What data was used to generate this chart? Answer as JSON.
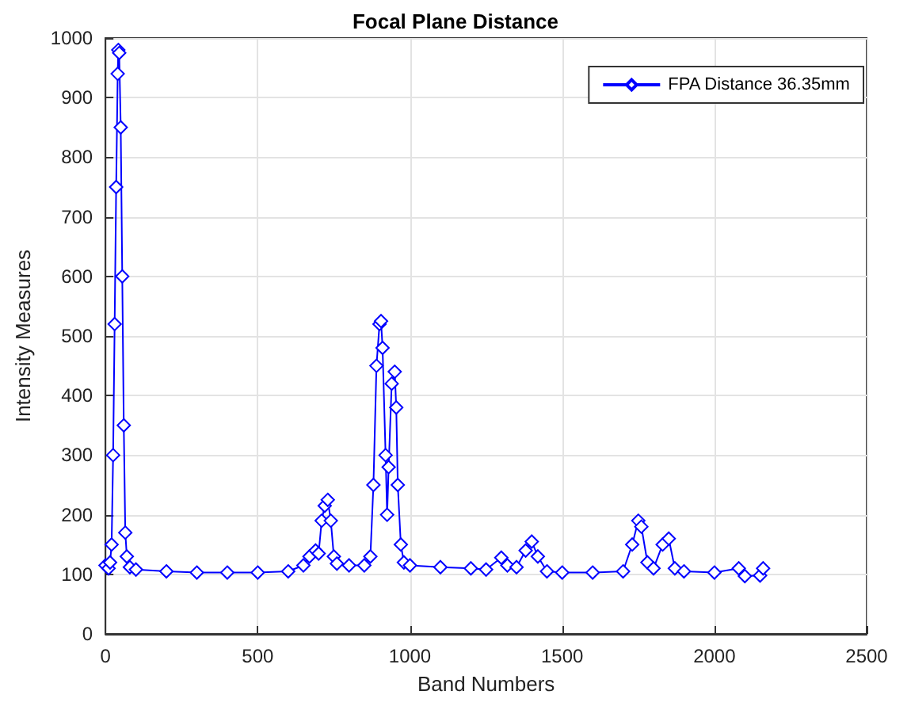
{
  "chart_data": {
    "type": "line",
    "title": "Focal Plane Distance",
    "xlabel": "Band Numbers",
    "ylabel": "Intensity Measures",
    "xlim": [
      0,
      2500
    ],
    "xticks": [
      0,
      500,
      1000,
      1500,
      2000,
      2500
    ],
    "ylim": [
      0,
      1000
    ],
    "yticks": [
      0,
      100,
      200,
      300,
      400,
      500,
      600,
      700,
      800,
      900,
      1000
    ],
    "grid": true,
    "legend": "top right",
    "marker": "diamond",
    "line_style": "solid",
    "series": [
      {
        "name": "FPA Distance 36.35mm",
        "color": "#0000ff",
        "x": [
          0,
          10,
          15,
          20,
          25,
          30,
          35,
          40,
          42,
          45,
          50,
          55,
          60,
          65,
          70,
          80,
          100,
          200,
          300,
          400,
          500,
          600,
          650,
          670,
          690,
          700,
          710,
          720,
          730,
          740,
          750,
          760,
          800,
          850,
          870,
          880,
          890,
          900,
          905,
          910,
          920,
          925,
          930,
          940,
          950,
          955,
          960,
          970,
          980,
          1000,
          1100,
          1200,
          1250,
          1300,
          1320,
          1350,
          1380,
          1400,
          1420,
          1450,
          1500,
          1600,
          1700,
          1730,
          1750,
          1760,
          1780,
          1800,
          1830,
          1850,
          1870,
          1900,
          2000,
          2080,
          2100,
          2150,
          2160
        ],
        "values": [
          115,
          110,
          120,
          150,
          300,
          520,
          750,
          940,
          980,
          975,
          850,
          600,
          350,
          170,
          130,
          112,
          108,
          105,
          103,
          103,
          103,
          105,
          115,
          130,
          140,
          135,
          190,
          215,
          225,
          190,
          130,
          118,
          115,
          115,
          130,
          250,
          450,
          520,
          525,
          480,
          300,
          200,
          280,
          420,
          440,
          380,
          250,
          150,
          120,
          115,
          112,
          110,
          108,
          128,
          115,
          112,
          140,
          155,
          130,
          105,
          103,
          103,
          105,
          150,
          190,
          180,
          120,
          110,
          150,
          160,
          110,
          105,
          103,
          110,
          97,
          98,
          110
        ]
      }
    ]
  }
}
